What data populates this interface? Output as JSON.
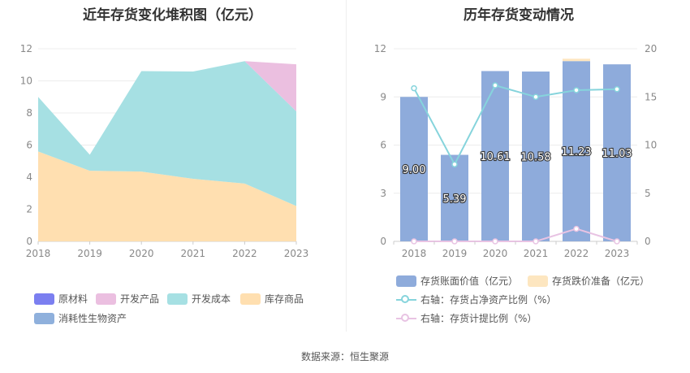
{
  "source_text": "数据来源：恒生聚源",
  "left": {
    "title": "近年存货变化堆积图（亿元）",
    "legend": [
      {
        "label": "原材料",
        "color": "#7b7ff0"
      },
      {
        "label": "开发产品",
        "color": "#ebbfe0"
      },
      {
        "label": "开发成本",
        "color": "#a6e0e3"
      },
      {
        "label": "库存商品",
        "color": "#ffdfb0"
      },
      {
        "label": "消耗性生物资产",
        "color": "#8fb0dc"
      }
    ]
  },
  "right": {
    "title": "历年存货变动情况",
    "legend": [
      {
        "label": "存货账面价值（亿元）",
        "color": "#8eabdb",
        "kind": "bar"
      },
      {
        "label": "存货跌价准备（亿元）",
        "color": "#fde6c0",
        "kind": "bar"
      },
      {
        "label": "右轴：存货占净资产比例（%）",
        "color": "#86d4dc",
        "kind": "line"
      },
      {
        "label": "右轴：存货计提比例（%）",
        "color": "#e8c3e3",
        "kind": "line"
      }
    ]
  },
  "chart_data": [
    {
      "type": "area",
      "title": "近年存货变化堆积图（亿元）",
      "x": [
        "2018",
        "2019",
        "2020",
        "2021",
        "2022",
        "2023"
      ],
      "ylim": [
        0,
        12
      ],
      "yticks": [
        0,
        2,
        4,
        6,
        8,
        10,
        12
      ],
      "stacked": true,
      "series": [
        {
          "name": "库存商品",
          "color": "#ffdfb0",
          "values": [
            5.6,
            4.4,
            4.35,
            3.9,
            3.6,
            2.2
          ]
        },
        {
          "name": "开发成本",
          "color": "#a6e0e3",
          "values": [
            3.4,
            1.0,
            6.26,
            6.68,
            7.63,
            5.9
          ]
        },
        {
          "name": "开发产品",
          "color": "#ebbfe0",
          "values": [
            0,
            0,
            0,
            0,
            0,
            2.93
          ]
        },
        {
          "name": "原材料",
          "color": "#7b7ff0",
          "values": [
            0,
            0,
            0,
            0,
            0,
            0
          ]
        },
        {
          "name": "消耗性生物资产",
          "color": "#8fb0dc",
          "values": [
            0,
            0,
            0,
            0,
            0,
            0
          ]
        }
      ],
      "grid": true,
      "legend_position": "bottom"
    },
    {
      "type": "bar",
      "title": "历年存货变动情况",
      "categories": [
        "2018",
        "2019",
        "2020",
        "2021",
        "2022",
        "2023"
      ],
      "ylim": [
        0,
        12
      ],
      "yticks": [
        0,
        3,
        6,
        9,
        12
      ],
      "y2lim": [
        0,
        20
      ],
      "y2ticks": [
        0,
        5,
        10,
        15,
        20
      ],
      "series": [
        {
          "name": "存货账面价值（亿元）",
          "type": "bar",
          "axis": "left",
          "color": "#8eabdb",
          "values": [
            9.0,
            5.39,
            10.61,
            10.58,
            11.23,
            11.03
          ],
          "labels": [
            "9.00",
            "5.39",
            "10.61",
            "10.58",
            "11.23",
            "11.03"
          ]
        },
        {
          "name": "存货跌价准备（亿元）",
          "type": "bar",
          "axis": "left",
          "stacked_on": "存货账面价值（亿元）",
          "color": "#fde6c0",
          "values": [
            0,
            0,
            0,
            0,
            0.15,
            0
          ]
        },
        {
          "name": "右轴：存货占净资产比例（%）",
          "type": "line",
          "axis": "right",
          "color": "#86d4dc",
          "values": [
            15.9,
            8.0,
            16.2,
            15.0,
            15.7,
            15.8
          ]
        },
        {
          "name": "右轴：存货计提比例（%）",
          "type": "line",
          "axis": "right",
          "color": "#e8c3e3",
          "values": [
            0,
            0,
            0,
            0,
            1.3,
            0
          ]
        }
      ],
      "grid": true,
      "legend_position": "bottom"
    }
  ]
}
